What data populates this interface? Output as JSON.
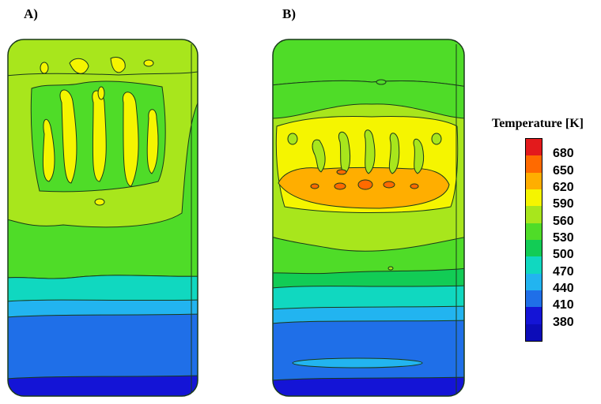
{
  "panels": [
    {
      "label": "A)"
    },
    {
      "label": "B)"
    }
  ],
  "legend": {
    "title": "Temperature [K]",
    "ticks": [
      "680",
      "650",
      "620",
      "590",
      "560",
      "530",
      "500",
      "470",
      "440",
      "410",
      "380"
    ],
    "colors": [
      "#e31a1c",
      "#ff6a00",
      "#ffae00",
      "#f5f500",
      "#a8e61c",
      "#4fdc28",
      "#12cc55",
      "#10d8c0",
      "#22b4f0",
      "#1f6fe8",
      "#1414d6",
      "#0c0cb8"
    ]
  }
}
